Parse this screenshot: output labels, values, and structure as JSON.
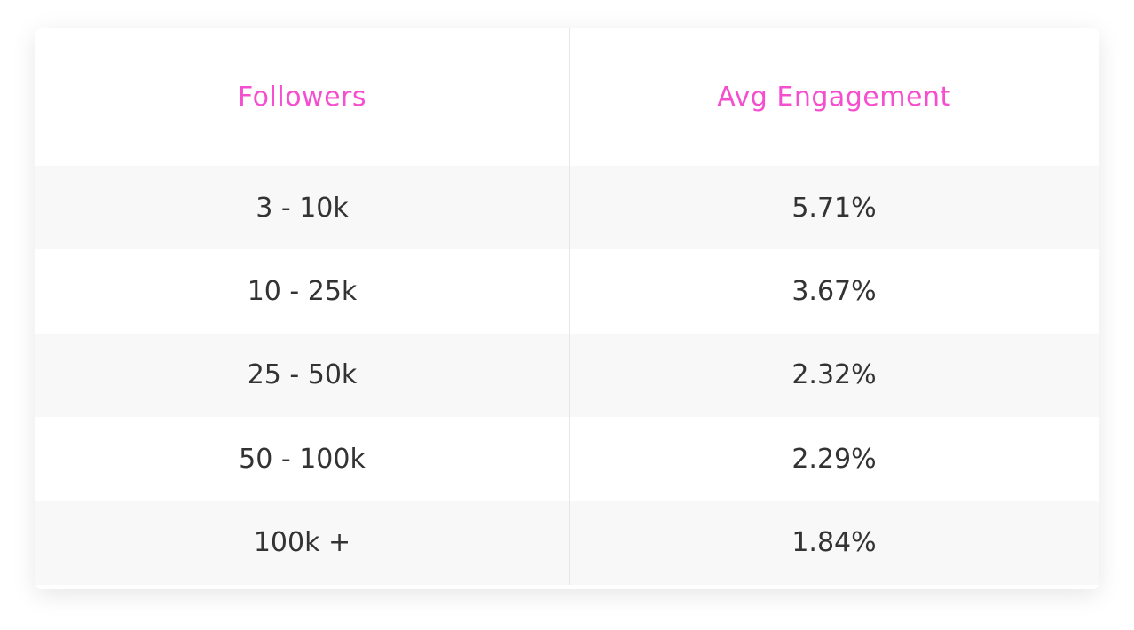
{
  "table": {
    "headers": [
      "Followers",
      "Avg Engagement"
    ],
    "rows": [
      [
        "3 - 10k",
        "5.71%"
      ],
      [
        "10 - 25k",
        "3.67%"
      ],
      [
        "25 - 50k",
        "2.32%"
      ],
      [
        "50 - 100k",
        "2.29%"
      ],
      [
        "100k +",
        "1.84%"
      ]
    ]
  }
}
